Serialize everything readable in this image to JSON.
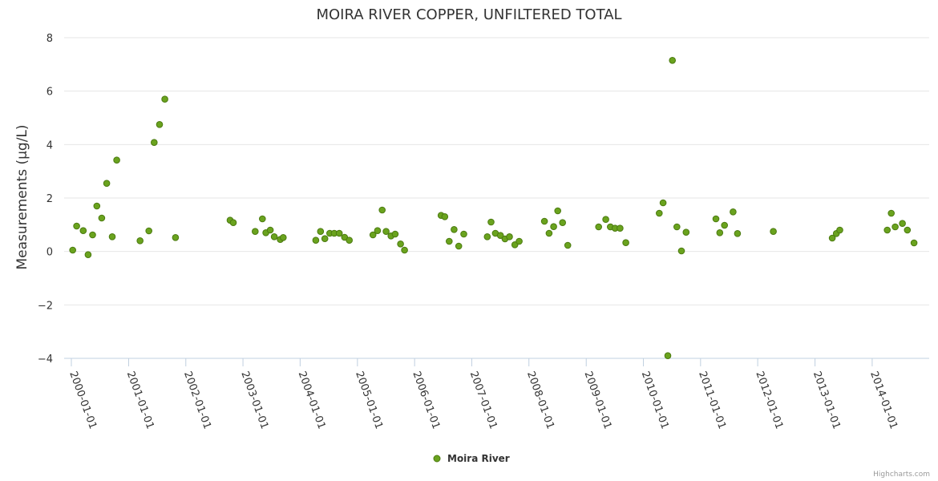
{
  "chart_data": {
    "type": "scatter",
    "title": "MOIRA RIVER COPPER, UNFILTERED TOTAL",
    "xlabel": "",
    "ylabel": "Measurements (µg/L)",
    "x_axis": {
      "type": "datetime",
      "range": [
        "1999-11-16",
        "2014-12-31"
      ],
      "tick_labels": [
        "2000-01-01",
        "2001-01-01",
        "2002-01-01",
        "2003-01-01",
        "2004-01-01",
        "2005-01-01",
        "2006-01-01",
        "2007-01-01",
        "2008-01-01",
        "2009-01-01",
        "2010-01-01",
        "2011-01-01",
        "2012-01-01",
        "2013-01-01",
        "2014-01-01"
      ]
    },
    "y_axis": {
      "range": [
        -4,
        8
      ],
      "ticks": [
        -4,
        -2,
        0,
        2,
        4,
        6,
        8
      ]
    },
    "grid": "horizontal",
    "legend": "bottom-center",
    "credits": "Highcharts.com",
    "series": [
      {
        "name": "Moira River",
        "color": "#6aa31e",
        "border_color": "#4b7a10",
        "points": [
          [
            "2000-01-10",
            0.05
          ],
          [
            "2000-02-04",
            0.95
          ],
          [
            "2000-03-17",
            0.78
          ],
          [
            "2000-04-17",
            -0.12
          ],
          [
            "2000-05-16",
            0.62
          ],
          [
            "2000-06-12",
            1.7
          ],
          [
            "2000-07-13",
            1.25
          ],
          [
            "2000-08-14",
            2.55
          ],
          [
            "2000-09-18",
            0.55
          ],
          [
            "2000-10-17",
            3.42
          ],
          [
            "2001-03-15",
            0.4
          ],
          [
            "2001-05-10",
            0.77
          ],
          [
            "2001-06-13",
            4.08
          ],
          [
            "2001-07-17",
            4.75
          ],
          [
            "2001-08-20",
            5.7
          ],
          [
            "2001-10-27",
            0.52
          ],
          [
            "2002-10-11",
            1.17
          ],
          [
            "2002-10-31",
            1.08
          ],
          [
            "2003-03-20",
            0.75
          ],
          [
            "2003-05-05",
            1.22
          ],
          [
            "2003-05-27",
            0.7
          ],
          [
            "2003-06-24",
            0.8
          ],
          [
            "2003-07-20",
            0.55
          ],
          [
            "2003-08-27",
            0.45
          ],
          [
            "2003-09-15",
            0.52
          ],
          [
            "2004-04-10",
            0.42
          ],
          [
            "2004-05-10",
            0.75
          ],
          [
            "2004-06-07",
            0.48
          ],
          [
            "2004-07-08",
            0.68
          ],
          [
            "2004-08-06",
            0.68
          ],
          [
            "2004-09-07",
            0.68
          ],
          [
            "2004-10-11",
            0.53
          ],
          [
            "2004-11-10",
            0.42
          ],
          [
            "2005-04-10",
            0.62
          ],
          [
            "2005-05-09",
            0.78
          ],
          [
            "2005-06-08",
            1.55
          ],
          [
            "2005-07-03",
            0.75
          ],
          [
            "2005-08-03",
            0.58
          ],
          [
            "2005-08-30",
            0.65
          ],
          [
            "2005-10-03",
            0.28
          ],
          [
            "2005-10-29",
            0.05
          ],
          [
            "2006-06-19",
            1.35
          ],
          [
            "2006-07-13",
            1.3
          ],
          [
            "2006-08-10",
            0.38
          ],
          [
            "2006-09-10",
            0.82
          ],
          [
            "2006-10-10",
            0.2
          ],
          [
            "2006-11-11",
            0.65
          ],
          [
            "2007-04-10",
            0.55
          ],
          [
            "2007-05-04",
            1.1
          ],
          [
            "2007-06-01",
            0.68
          ],
          [
            "2007-07-03",
            0.6
          ],
          [
            "2007-08-01",
            0.47
          ],
          [
            "2007-08-30",
            0.55
          ],
          [
            "2007-10-03",
            0.25
          ],
          [
            "2007-10-31",
            0.38
          ],
          [
            "2008-04-09",
            1.13
          ],
          [
            "2008-05-09",
            0.68
          ],
          [
            "2008-06-07",
            0.93
          ],
          [
            "2008-07-03",
            1.52
          ],
          [
            "2008-08-03",
            1.08
          ],
          [
            "2008-09-05",
            0.23
          ],
          [
            "2009-03-21",
            0.92
          ],
          [
            "2009-05-06",
            1.2
          ],
          [
            "2009-06-04",
            0.92
          ],
          [
            "2009-07-04",
            0.87
          ],
          [
            "2009-08-05",
            0.87
          ],
          [
            "2009-09-11",
            0.33
          ],
          [
            "2010-04-12",
            1.43
          ],
          [
            "2010-05-07",
            1.82
          ],
          [
            "2010-06-06",
            -3.9
          ],
          [
            "2010-07-05",
            7.15
          ],
          [
            "2010-08-03",
            0.92
          ],
          [
            "2010-09-01",
            0.02
          ],
          [
            "2010-10-01",
            0.72
          ],
          [
            "2011-04-09",
            1.22
          ],
          [
            "2011-05-04",
            0.7
          ],
          [
            "2011-06-03",
            0.98
          ],
          [
            "2011-07-28",
            1.48
          ],
          [
            "2011-08-25",
            0.67
          ],
          [
            "2012-04-10",
            0.75
          ],
          [
            "2013-04-21",
            0.5
          ],
          [
            "2013-05-17",
            0.67
          ],
          [
            "2013-06-08",
            0.8
          ],
          [
            "2014-04-07",
            0.8
          ],
          [
            "2014-05-03",
            1.43
          ],
          [
            "2014-05-28",
            0.92
          ],
          [
            "2014-07-13",
            1.05
          ],
          [
            "2014-08-14",
            0.8
          ],
          [
            "2014-09-25",
            0.32
          ]
        ]
      }
    ]
  }
}
